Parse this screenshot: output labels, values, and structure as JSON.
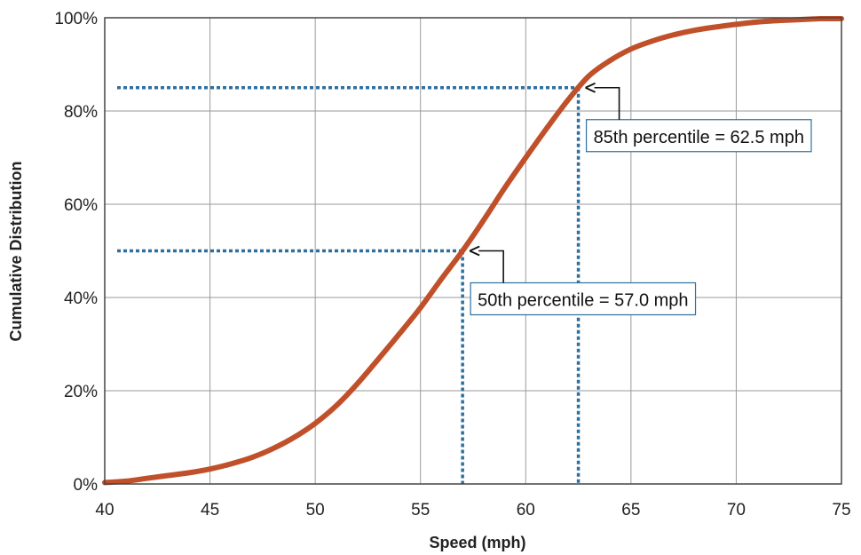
{
  "chart_data": {
    "type": "line",
    "xlabel": "Speed (mph)",
    "ylabel": "Cumulative Distribution",
    "xlim": [
      40,
      75
    ],
    "ylim": [
      0,
      100
    ],
    "x_ticks": [
      40,
      45,
      50,
      55,
      60,
      65,
      70,
      75
    ],
    "y_ticks": [
      0,
      20,
      40,
      60,
      80,
      100
    ],
    "y_tick_labels": [
      "0%",
      "20%",
      "40%",
      "60%",
      "80%",
      "100%"
    ],
    "grid": true,
    "series": [
      {
        "color": "#c0502a",
        "x": [
          40,
          41,
          42,
          43,
          44,
          45,
          46,
          47,
          48,
          49,
          50,
          51,
          52,
          53,
          54,
          55,
          56,
          57,
          58,
          59,
          60,
          61,
          62,
          63,
          64,
          65,
          66,
          67,
          68,
          69,
          70,
          71,
          72,
          73,
          74,
          75
        ],
        "y": [
          0.3,
          0.6,
          1.2,
          1.8,
          2.4,
          3.2,
          4.3,
          5.7,
          7.6,
          10.0,
          13.0,
          16.8,
          21.5,
          26.8,
          32.2,
          37.8,
          44.0,
          50.0,
          56.6,
          63.5,
          70.0,
          76.3,
          82.3,
          87.5,
          90.8,
          93.3,
          95.0,
          96.3,
          97.3,
          98.0,
          98.6,
          99.1,
          99.4,
          99.6,
          99.8,
          99.8
        ]
      }
    ],
    "reference_color": "#2e6f9e",
    "annotations": [
      {
        "text": "85th percentile = 62.5 mph",
        "x": 62.5,
        "y": 85
      },
      {
        "text": "50th percentile = 57.0 mph",
        "x": 57.0,
        "y": 50
      }
    ]
  }
}
